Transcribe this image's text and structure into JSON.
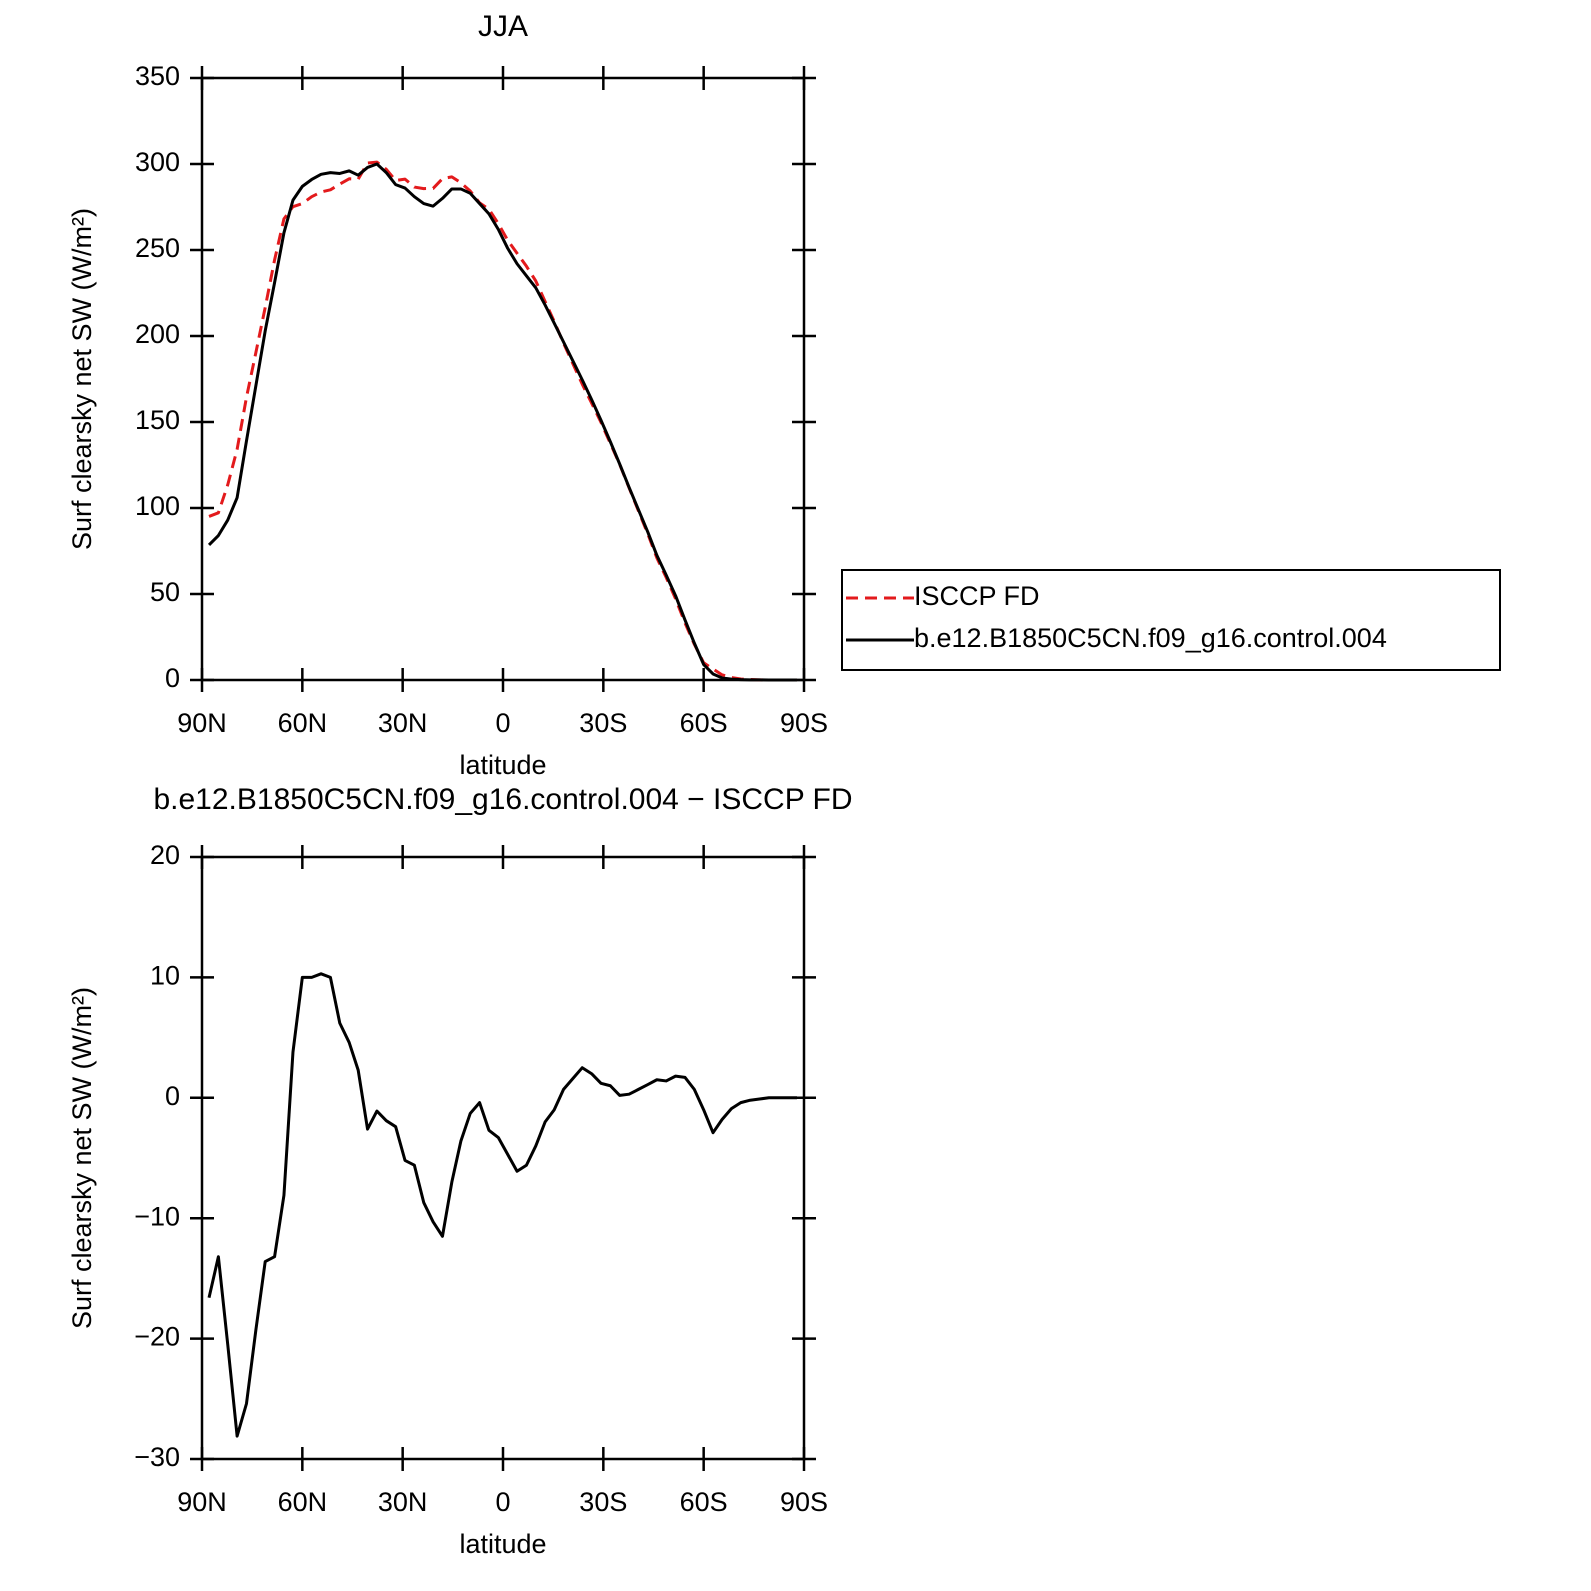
{
  "chart_data": [
    {
      "type": "line",
      "title": "JJA",
      "xlabel": "latitude",
      "ylabel": "Surf clearsky net SW (W/m²)",
      "x": [
        87.9,
        85.1,
        82.3,
        79.5,
        76.7,
        73.9,
        71.1,
        68.3,
        65.5,
        62.8,
        60.0,
        57.2,
        54.4,
        51.6,
        48.8,
        46.0,
        43.3,
        40.5,
        37.7,
        34.9,
        32.1,
        29.3,
        26.5,
        23.7,
        20.9,
        18.1,
        15.3,
        12.6,
        9.8,
        7.0,
        4.2,
        1.4,
        -1.4,
        -4.2,
        -7.0,
        -9.8,
        -12.6,
        -15.3,
        -18.1,
        -20.9,
        -23.7,
        -26.5,
        -29.3,
        -32.1,
        -34.9,
        -37.7,
        -40.5,
        -43.3,
        -46.0,
        -48.8,
        -51.6,
        -54.4,
        -57.2,
        -60.0,
        -62.8,
        -65.5,
        -68.3,
        -71.1,
        -73.9,
        -76.7,
        -79.5,
        -82.3,
        -85.1,
        -87.9
      ],
      "xlim": [
        90,
        -90
      ],
      "xticks": [
        {
          "value": 90,
          "label": "90N"
        },
        {
          "value": 60,
          "label": "60N"
        },
        {
          "value": 30,
          "label": "30N"
        },
        0,
        {
          "value": -30,
          "label": "30S"
        },
        {
          "value": -60,
          "label": "60S"
        },
        {
          "value": -90,
          "label": "90S"
        }
      ],
      "ylim": [
        0,
        350
      ],
      "yticks": [
        0,
        50,
        100,
        150,
        200,
        250,
        300,
        350
      ],
      "series": [
        {
          "name": "ISCCP FD",
          "color": "#e31a1c",
          "dash": true,
          "values": [
            95.1,
            97.2,
            113.5,
            134.1,
            164.4,
            190.3,
            216.6,
            244.2,
            268.1,
            275.2,
            277,
            281,
            283.7,
            285,
            288.3,
            291.4,
            291.2,
            300.6,
            301.1,
            296.9,
            290.4,
            291.2,
            286.6,
            285.7,
            285.8,
            291.5,
            292.5,
            289.1,
            284.3,
            277.4,
            273.7,
            265.3,
            255.7,
            248.1,
            240.6,
            232,
            220,
            208.5,
            195.8,
            183.9,
            172,
            161,
            149.8,
            137.5,
            125.3,
            111.7,
            98.3,
            84.9,
            71,
            59.6,
            47.2,
            33.3,
            20.8,
            10,
            6.4,
            3,
            1.4,
            0.6,
            0.3,
            0.1,
            0,
            0,
            0,
            0
          ]
        },
        {
          "name": "b.e12.B1850C5CN.f09_g16.control.004",
          "color": "#000000",
          "dash": false,
          "values": [
            78.5,
            84,
            93,
            106,
            139,
            171,
            203,
            231,
            260,
            279,
            287,
            291,
            294,
            295,
            294.5,
            296,
            293.5,
            298,
            300,
            295,
            288,
            286,
            281,
            277,
            275.5,
            280,
            285.5,
            285.5,
            283,
            277,
            271,
            262,
            251,
            242,
            235,
            228,
            218,
            207.5,
            196.5,
            185.5,
            174.5,
            163,
            151,
            138.5,
            125.5,
            112,
            99,
            86,
            72.5,
            61,
            49,
            35,
            21.5,
            9,
            3.5,
            1.2,
            0.5,
            0.2,
            0.1,
            0.05,
            0,
            0,
            0,
            0
          ]
        }
      ]
    },
    {
      "type": "line",
      "title": "b.e12.B1850C5CN.f09_g16.control.004 − ISCCP FD",
      "xlabel": "latitude",
      "ylabel": "Surf clearsky net SW (W/m²)",
      "x": [
        87.9,
        85.1,
        82.3,
        79.5,
        76.7,
        73.9,
        71.1,
        68.3,
        65.5,
        62.8,
        60.0,
        57.2,
        54.4,
        51.6,
        48.8,
        46.0,
        43.3,
        40.5,
        37.7,
        34.9,
        32.1,
        29.3,
        26.5,
        23.7,
        20.9,
        18.1,
        15.3,
        12.6,
        9.8,
        7.0,
        4.2,
        1.4,
        -1.4,
        -4.2,
        -7.0,
        -9.8,
        -12.6,
        -15.3,
        -18.1,
        -20.9,
        -23.7,
        -26.5,
        -29.3,
        -32.1,
        -34.9,
        -37.7,
        -40.5,
        -43.3,
        -46.0,
        -48.8,
        -51.6,
        -54.4,
        -57.2,
        -60.0,
        -62.8,
        -65.5,
        -68.3,
        -71.1,
        -73.9,
        -76.7,
        -79.5,
        -82.3,
        -85.1,
        -87.9
      ],
      "xlim": [
        90,
        -90
      ],
      "xticks": [
        {
          "value": 90,
          "label": "90N"
        },
        {
          "value": 60,
          "label": "60N"
        },
        {
          "value": 30,
          "label": "30N"
        },
        0,
        {
          "value": -30,
          "label": "30S"
        },
        {
          "value": -60,
          "label": "60S"
        },
        {
          "value": -90,
          "label": "90S"
        }
      ],
      "ylim": [
        -30,
        20
      ],
      "yticks": [
        {
          "value": -30,
          "label": "−30"
        },
        {
          "value": -20,
          "label": "−20"
        },
        {
          "value": -10,
          "label": "−10"
        },
        0,
        10,
        20
      ],
      "color": "#000000",
      "values": [
        -16.6,
        -13.2,
        -20.5,
        -28.1,
        -25.4,
        -19.3,
        -13.6,
        -13.2,
        -8.1,
        3.8,
        10,
        10,
        10.3,
        10,
        6.2,
        4.6,
        2.3,
        -2.6,
        -1.1,
        -1.9,
        -2.4,
        -5.2,
        -5.6,
        -8.7,
        -10.3,
        -11.5,
        -7,
        -3.6,
        -1.3,
        -0.4,
        -2.7,
        -3.3,
        -4.7,
        -6.1,
        -5.6,
        -4,
        -2,
        -1,
        0.7,
        1.6,
        2.5,
        2,
        1.2,
        1,
        0.2,
        0.3,
        0.7,
        1.1,
        1.5,
        1.4,
        1.8,
        1.7,
        0.7,
        -1,
        -2.9,
        -1.8,
        -0.9,
        -0.4,
        -0.2,
        -0.1,
        0,
        0,
        0,
        0
      ]
    }
  ]
}
